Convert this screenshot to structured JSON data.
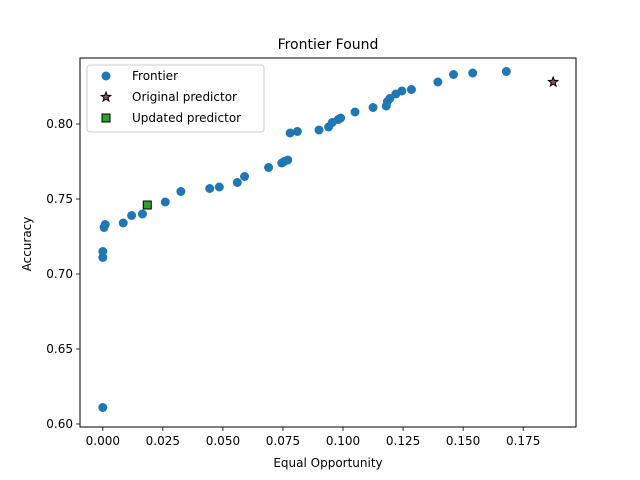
{
  "chart_data": {
    "type": "scatter",
    "title": "Frontier Found",
    "xlabel": "Equal Opportunity",
    "ylabel": "Accuracy",
    "xlim": [
      -0.0095,
      0.197
    ],
    "ylim": [
      0.598,
      0.844
    ],
    "xticks": [
      0.0,
      0.025,
      0.05,
      0.075,
      0.1,
      0.125,
      0.15,
      0.175
    ],
    "xtick_labels": [
      "0.000",
      "0.025",
      "0.050",
      "0.075",
      "0.100",
      "0.125",
      "0.150",
      "0.175"
    ],
    "yticks": [
      0.6,
      0.65,
      0.7,
      0.75,
      0.8
    ],
    "ytick_labels": [
      "0.60",
      "0.65",
      "0.70",
      "0.75",
      "0.80"
    ],
    "grid": false,
    "legend_position": "top-left",
    "series": [
      {
        "name": "Frontier",
        "marker": "circle",
        "color": "#1f77b4",
        "points": [
          [
            0.0,
            0.611
          ],
          [
            0.0,
            0.711
          ],
          [
            0.0,
            0.715
          ],
          [
            0.0005,
            0.731
          ],
          [
            0.001,
            0.733
          ],
          [
            0.0085,
            0.734
          ],
          [
            0.012,
            0.739
          ],
          [
            0.0165,
            0.74
          ],
          [
            0.026,
            0.748
          ],
          [
            0.0325,
            0.755
          ],
          [
            0.0445,
            0.757
          ],
          [
            0.0485,
            0.758
          ],
          [
            0.056,
            0.761
          ],
          [
            0.059,
            0.765
          ],
          [
            0.069,
            0.771
          ],
          [
            0.0745,
            0.774
          ],
          [
            0.0755,
            0.775
          ],
          [
            0.077,
            0.776
          ],
          [
            0.078,
            0.794
          ],
          [
            0.081,
            0.795
          ],
          [
            0.09,
            0.796
          ],
          [
            0.094,
            0.798
          ],
          [
            0.0955,
            0.801
          ],
          [
            0.098,
            0.803
          ],
          [
            0.099,
            0.804
          ],
          [
            0.105,
            0.808
          ],
          [
            0.1125,
            0.811
          ],
          [
            0.118,
            0.812
          ],
          [
            0.1185,
            0.815
          ],
          [
            0.1195,
            0.817
          ],
          [
            0.122,
            0.82
          ],
          [
            0.1245,
            0.822
          ],
          [
            0.1285,
            0.823
          ],
          [
            0.1395,
            0.828
          ],
          [
            0.146,
            0.833
          ],
          [
            0.154,
            0.834
          ],
          [
            0.168,
            0.835
          ]
        ]
      },
      {
        "name": "Original predictor",
        "marker": "star",
        "color": "#8c564b",
        "points": [
          [
            0.1875,
            0.828
          ]
        ]
      },
      {
        "name": "Updated predictor",
        "marker": "square",
        "color": "#2ca02c",
        "points": [
          [
            0.0185,
            0.746
          ]
        ]
      }
    ]
  }
}
